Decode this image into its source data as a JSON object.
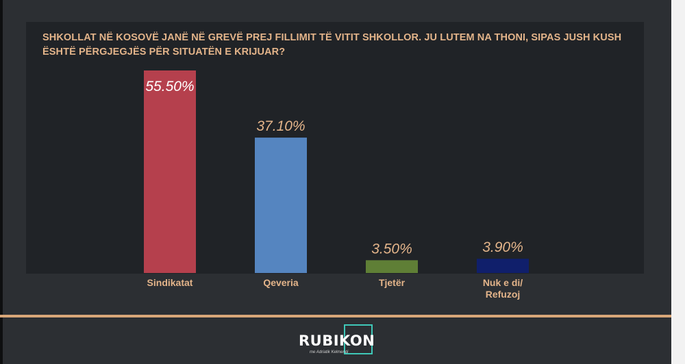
{
  "title": "SHKOLLAT NË KOSOVË JANË NË GREVË PREJ FILLIMIT TË VITIT SHKOLLOR. JU LUTEM NA THONI, SIPAS JUSH KUSH ËSHTË PËRGJEGJËS PËR SITUATËN E KRIJUAR?",
  "chart_data": {
    "type": "bar",
    "categories": [
      "Sindikatat",
      "Qeveria",
      "Tjetër",
      "Nuk e di/ Refuzoj"
    ],
    "values": [
      55.5,
      37.1,
      3.5,
      3.9
    ],
    "data_labels": [
      "55.50%",
      "37.10%",
      "3.50%",
      "3.90%"
    ],
    "colors": [
      "#b5404d",
      "#5585c0",
      "#5f7f36",
      "#101f6b"
    ],
    "ylim": [
      0,
      55.5
    ],
    "grid": false,
    "legend": "none"
  },
  "logo": {
    "text": "RUBIKON",
    "tagline": "me Adriatik Kelmendi"
  }
}
